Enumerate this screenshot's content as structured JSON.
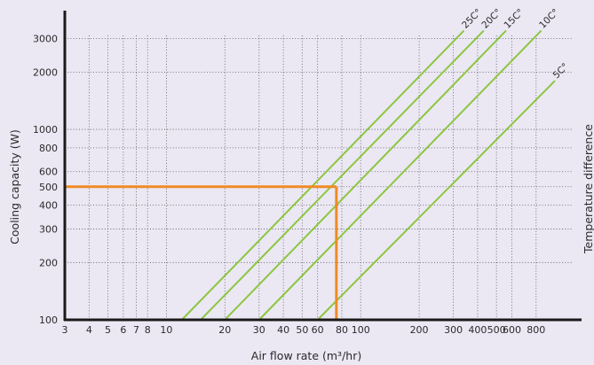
{
  "chart_data": {
    "type": "line",
    "xlabel": "Air flow rate (m³/hr)",
    "ylabel": "Cooling capacity (W)",
    "y2label": "Temperature difference",
    "x_scale": "log",
    "y_scale": "log",
    "xlim": [
      3,
      1500
    ],
    "ylim": [
      100,
      4000
    ],
    "grid": true,
    "x_ticks": [
      3,
      4,
      5,
      6,
      7,
      8,
      10,
      20,
      30,
      40,
      50,
      60,
      80,
      100,
      200,
      300,
      400,
      500,
      600,
      800
    ],
    "x_tick_labels": [
      "3",
      "4",
      "5",
      "6",
      "7",
      "8",
      "10",
      "20",
      "30",
      "40",
      "50",
      "60",
      "80",
      "100",
      "200",
      "300",
      "400",
      "500",
      "600",
      "800"
    ],
    "y_ticks": [
      100,
      200,
      300,
      400,
      500,
      600,
      800,
      1000,
      2000,
      3000
    ],
    "y_tick_labels": [
      "100",
      "200",
      "300",
      "400",
      "500",
      "600",
      "800",
      "1000",
      "2000",
      "3000"
    ],
    "series_color": "#8cc63f",
    "series": [
      {
        "name": "25C°",
        "x": [
          12,
          340
        ],
        "y": [
          100,
          3300
        ]
      },
      {
        "name": "20C°",
        "x": [
          15,
          430
        ],
        "y": [
          100,
          3300
        ]
      },
      {
        "name": "15C°",
        "x": [
          20,
          560
        ],
        "y": [
          100,
          3300
        ]
      },
      {
        "name": "10C°",
        "x": [
          30,
          850
        ],
        "y": [
          100,
          3300
        ]
      },
      {
        "name": "5C°",
        "x": [
          60,
          1000
        ],
        "y": [
          100,
          1800
        ]
      }
    ],
    "annotation": {
      "color": "#f08a24",
      "x": 75,
      "y": 500,
      "from_x": 3,
      "to_y": 100
    }
  }
}
